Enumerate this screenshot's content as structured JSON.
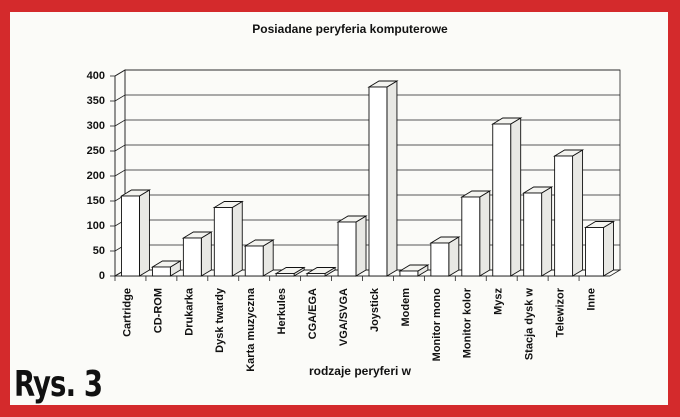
{
  "chart_data": {
    "type": "bar3d",
    "title": "Posiadane peryferia komputerowe",
    "x_label": "rodzaje peryferi w",
    "annotation": "Rys. 3",
    "categories": [
      "Cartridge",
      "CD-ROM",
      "Drukarka",
      "Dysk twardy",
      "Karta muzyczna",
      "Herkules",
      "CGA/EGA",
      "VGA/SVGA",
      "Joystick",
      "Modem",
      "Monitor mono",
      "Monitor kolor",
      "Mysz",
      "Stacja dysk w",
      "Telewizor",
      "Inne"
    ],
    "values": [
      160,
      18,
      76,
      137,
      60,
      5,
      5,
      108,
      378,
      10,
      66,
      158,
      304,
      166,
      240,
      97
    ],
    "color": "#ffffff",
    "ylim": [
      0,
      400
    ],
    "yticks": [
      0,
      50,
      100,
      150,
      200,
      250,
      300,
      350,
      400
    ],
    "grid": true
  }
}
